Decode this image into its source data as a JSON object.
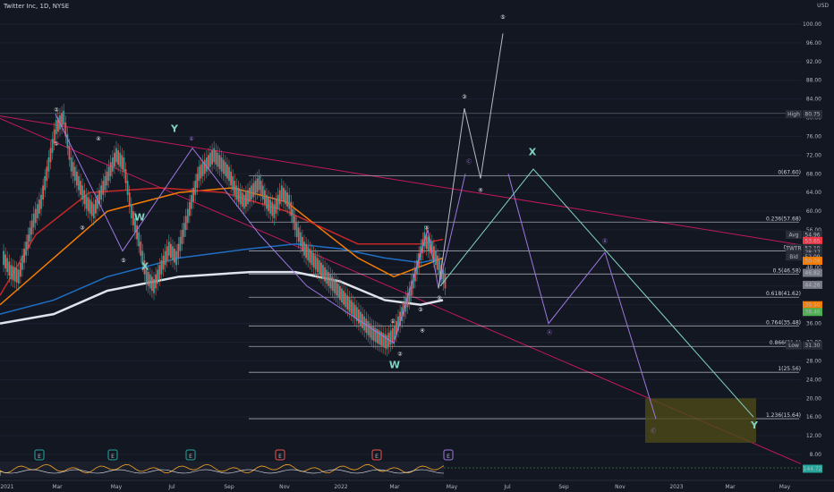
{
  "header": {
    "title": "Twitter Inc, 1D, NYSE"
  },
  "chart_data": {
    "type": "line",
    "currency": "USD",
    "ylim": [
      8,
      100
    ],
    "y_ticks": [
      100,
      96,
      92,
      88,
      84,
      80,
      76,
      72,
      68,
      64,
      60,
      56,
      52,
      48,
      44,
      40,
      36,
      32,
      28,
      24,
      20,
      16,
      12,
      8
    ],
    "x_ticks": [
      "2021",
      "Mar",
      "May",
      "Jul",
      "Sep",
      "Nov",
      "2022",
      "Mar",
      "May",
      "Jul",
      "Sep",
      "Nov",
      "2023",
      "Mar",
      "May"
    ],
    "price_series": {
      "name": "TWTR",
      "x": [
        0,
        5,
        10,
        15,
        20,
        25,
        30,
        35,
        40,
        45,
        50,
        55,
        60,
        65,
        70,
        75,
        80,
        85,
        90,
        95,
        100,
        105,
        110,
        115,
        120,
        125,
        130,
        135,
        140,
        145,
        150,
        155,
        160,
        165,
        170,
        175,
        180,
        185,
        190,
        195,
        200,
        205,
        210,
        215,
        220,
        225,
        230,
        235,
        240,
        245,
        250,
        255,
        260,
        265,
        270,
        275,
        280,
        285,
        290,
        295
      ],
      "values": [
        50,
        47,
        46,
        52,
        58,
        62,
        70,
        78,
        80,
        70,
        66,
        62,
        60,
        64,
        68,
        72,
        70,
        60,
        54,
        46,
        44,
        48,
        52,
        50,
        56,
        62,
        68,
        70,
        72,
        70,
        68,
        64,
        62,
        64,
        66,
        62,
        60,
        64,
        62,
        56,
        52,
        50,
        48,
        46,
        44,
        42,
        40,
        38,
        36,
        34,
        33,
        32,
        34,
        38,
        42,
        48,
        54,
        52,
        48,
        44
      ]
    },
    "price_labels": [
      {
        "tag": "High",
        "value": "80.75",
        "color": "#2a2e39"
      },
      {
        "tag": "Avg",
        "value": "54.96",
        "color": "#2a2e39"
      },
      {
        "tag": "",
        "value": "53.65",
        "color": "#f23645"
      },
      {
        "tag": "Ask",
        "value": "52.11",
        "color": "#2a2e39"
      },
      {
        "tag": "TWTR",
        "value": "52.10",
        "color": "#2a2e39"
      },
      {
        "tag": "",
        "value": "28:27",
        "color": "#2a2e39"
      },
      {
        "tag": "Bid",
        "value": "52.09",
        "color": "#2a2e39"
      },
      {
        "tag": "",
        "value": "50.09",
        "color": "#f57c00"
      },
      {
        "tag": "",
        "value": "46.82",
        "color": "#787b86"
      },
      {
        "tag": "",
        "value": "44.26",
        "color": "#787b86"
      },
      {
        "tag": "",
        "value": "39.90",
        "color": "#f57c00"
      },
      {
        "tag": "",
        "value": "38.46",
        "color": "#4caf50"
      },
      {
        "tag": "Low",
        "value": "31.30",
        "color": "#2a2e39"
      },
      {
        "tag": "",
        "value": "144.72",
        "color": "#26a69a"
      }
    ],
    "fib_levels": [
      {
        "label": "0(67.60)",
        "value": 67.6
      },
      {
        "label": "0.236(57.68)",
        "value": 57.68
      },
      {
        "label": "0.382(",
        "value": 51.5
      },
      {
        "label": "0.5(46.58)",
        "value": 46.58
      },
      {
        "label": "0.618(41.62)",
        "value": 41.62
      },
      {
        "label": "0.764(35.48)",
        "value": 35.48
      },
      {
        "label": "0.866(31.1)",
        "value": 31.1
      },
      {
        "label": "1(25.56)",
        "value": 25.56
      },
      {
        "label": "1.236(15.64)",
        "value": 15.64
      }
    ],
    "wave_labels": [
      "②",
      "①",
      "④",
      "③",
      "⑤",
      "⑥",
      "⑤",
      "④",
      "③",
      "②",
      "①",
      "②",
      "③",
      "④",
      "⑤",
      "Ⓐ",
      "Ⓑ",
      "Ⓒ",
      "Ⓒ"
    ],
    "big_labels": [
      "Y",
      "W",
      "X",
      "W",
      "X",
      "Y"
    ],
    "event_markers": [
      "E",
      "E",
      "E",
      "E",
      "E",
      "E",
      "E"
    ],
    "colors": {
      "background": "#131722",
      "candle_up": "#26a69a",
      "candle_down": "#ef5350",
      "trend_red": "#c2185b",
      "projection_purple": "#9c78e0",
      "projection_teal": "#7fd3c3",
      "fib_line": "#d1d4dc",
      "target_box": "#4d4a18"
    }
  }
}
